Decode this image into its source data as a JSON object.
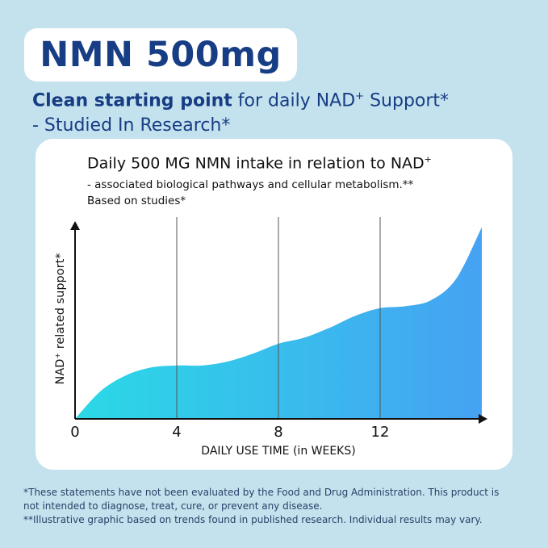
{
  "header": {
    "title": "NMN 500mg",
    "subtitle_bold": "Clean starting point",
    "subtitle_rest": " for daily NAD",
    "subtitle_sup": "+",
    "subtitle_end": " Support*",
    "subtitle_line2": "- Studied In Research*"
  },
  "chart_data": {
    "type": "area",
    "title": "Daily 500 MG NMN intake in relation to NAD",
    "title_sup": "+",
    "subtitle_line1": "- associated biological pathways and cellular metabolism.**",
    "subtitle_line2": "Based on studies*",
    "xlabel": "DAILY USE TIME (in WEEKS)",
    "ylabel": "NAD⁺ related support*",
    "x_ticks": [
      {
        "label": "0",
        "value": 0
      },
      {
        "label": "4",
        "value": 4
      },
      {
        "label": "8",
        "value": 8
      },
      {
        "label": "12",
        "value": 12
      }
    ],
    "vertical_gridlines_at": [
      4,
      8,
      12
    ],
    "xlim": [
      0,
      16
    ],
    "ylim": [
      0,
      10
    ],
    "series": [
      {
        "x": [
          0,
          1,
          2,
          3,
          4,
          5,
          6,
          7,
          8,
          9,
          10,
          11,
          12,
          13,
          14,
          15,
          16
        ],
        "values": [
          0,
          1.4,
          2.2,
          2.6,
          2.7,
          2.7,
          2.9,
          3.3,
          3.8,
          4.1,
          4.6,
          5.2,
          5.6,
          5.7,
          6.0,
          7.1,
          9.7
        ]
      }
    ],
    "gradient_colors": [
      "#2ad9e6",
      "#46a2f2"
    ],
    "grid": false
  },
  "footnotes": [
    "*These statements have not been evaluated by the Food and Drug Administration. This product is",
    "not intended to diagnose, treat, cure, or prevent any disease.",
    "**Illustrative graphic based on trends found in published research. Individual results may vary."
  ]
}
